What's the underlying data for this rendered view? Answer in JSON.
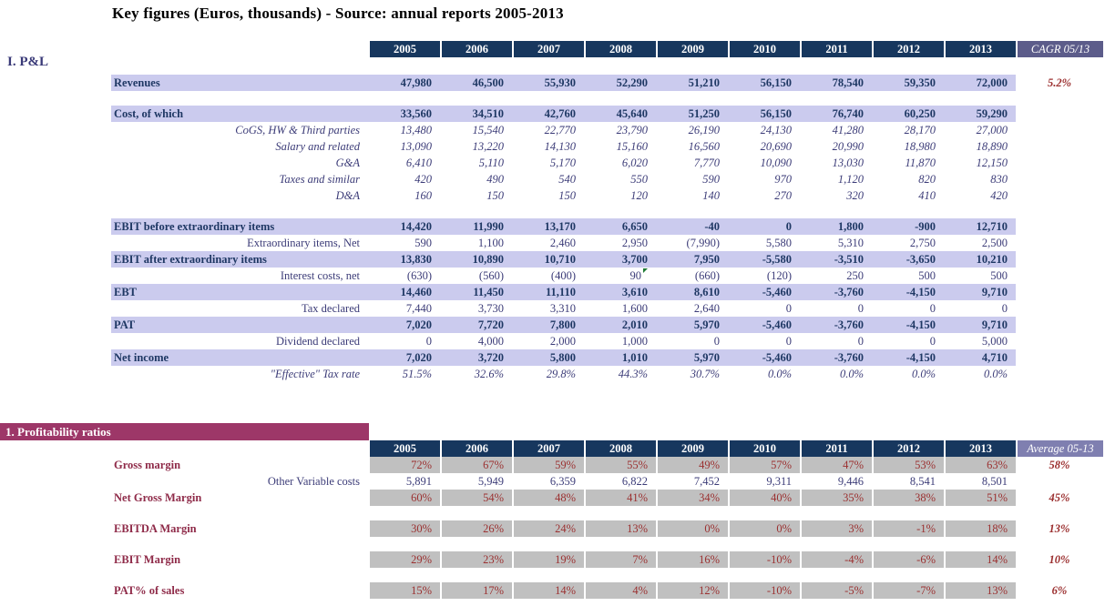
{
  "title": "Key figures (Euros, thousands) - Source: annual reports 2005-2013",
  "years": [
    "2005",
    "2006",
    "2007",
    "2008",
    "2009",
    "2010",
    "2011",
    "2012",
    "2013"
  ],
  "colors": {
    "header_navy": "#17375E",
    "lavender_band": "#CBCBEE",
    "gray_cell": "#C0C0C0",
    "banner_magenta": "#9D3768",
    "cagr_header_bg": "#5C5C8A",
    "average_header_bg": "#7F7FB0",
    "value_dark_red": "#9B3131",
    "ratio_label_red": "#8F2B49",
    "text_navy": "#1F3864",
    "comment_flag_green": "#1E7B34"
  },
  "pnl": {
    "section_label": "I. P&L",
    "extra_header": "CAGR 05/13",
    "rows": [
      {
        "id": "revenues",
        "label": "Revenues",
        "style": "total",
        "values": [
          "47,980",
          "46,500",
          "55,930",
          "52,290",
          "51,210",
          "56,150",
          "78,540",
          "59,350",
          "72,000"
        ],
        "extra": "5.2%"
      },
      {
        "style": "spacer",
        "h": 16
      },
      {
        "id": "cost-of-which",
        "label": "Cost, of which",
        "style": "total",
        "values": [
          "33,560",
          "34,510",
          "42,760",
          "45,640",
          "51,250",
          "56,150",
          "76,740",
          "60,250",
          "59,290"
        ]
      },
      {
        "id": "cogs-hw-third-parties",
        "label": "CoGS, HW & Third parties",
        "style": "italic",
        "values": [
          "13,480",
          "15,540",
          "22,770",
          "23,790",
          "26,190",
          "24,130",
          "41,280",
          "28,170",
          "27,000"
        ]
      },
      {
        "id": "salary-and-related",
        "label": "Salary and related",
        "style": "italic",
        "values": [
          "13,090",
          "13,220",
          "14,130",
          "15,160",
          "16,560",
          "20,690",
          "20,990",
          "18,980",
          "18,890"
        ]
      },
      {
        "id": "g-and-a",
        "label": "G&A",
        "style": "italic",
        "values": [
          "6,410",
          "5,110",
          "5,170",
          "6,020",
          "7,770",
          "10,090",
          "13,030",
          "11,870",
          "12,150"
        ]
      },
      {
        "id": "taxes-and-similar",
        "label": "Taxes and similar",
        "style": "italic",
        "values": [
          "420",
          "490",
          "540",
          "550",
          "590",
          "970",
          "1,120",
          "820",
          "830"
        ]
      },
      {
        "id": "d-and-a",
        "label": "D&A",
        "style": "italic",
        "values": [
          "160",
          "150",
          "150",
          "120",
          "140",
          "270",
          "320",
          "410",
          "420"
        ]
      },
      {
        "style": "spacer",
        "h": 16
      },
      {
        "id": "ebit-before-extraordinary",
        "label": "EBIT before extraordinary items",
        "style": "total",
        "values": [
          "14,420",
          "11,990",
          "13,170",
          "6,650",
          "-40",
          "0",
          "1,800",
          "-900",
          "12,710"
        ]
      },
      {
        "id": "extraordinary-items-net",
        "label": "Extraordinary items, Net",
        "style": "roman",
        "values": [
          "590",
          "1,100",
          "2,460",
          "2,950",
          "(7,990)",
          "5,580",
          "5,310",
          "2,750",
          "2,500"
        ]
      },
      {
        "id": "ebit-after-extraordinary",
        "label": "EBIT after extraordinary items",
        "style": "total",
        "values": [
          "13,830",
          "10,890",
          "10,710",
          "3,700",
          "7,950",
          "-5,580",
          "-3,510",
          "-3,650",
          "10,210"
        ]
      },
      {
        "id": "interest-costs-net",
        "label": "Interest costs, net",
        "style": "roman",
        "values": [
          "(630)",
          "(560)",
          "(400)",
          "90",
          "(660)",
          "(120)",
          "250",
          "500",
          "500"
        ],
        "flag_col": 3
      },
      {
        "id": "ebt",
        "label": "EBT",
        "style": "total",
        "values": [
          "14,460",
          "11,450",
          "11,110",
          "3,610",
          "8,610",
          "-5,460",
          "-3,760",
          "-4,150",
          "9,710"
        ]
      },
      {
        "id": "tax-declared",
        "label": "Tax declared",
        "style": "roman",
        "values": [
          "7,440",
          "3,730",
          "3,310",
          "1,600",
          "2,640",
          "0",
          "0",
          "0",
          "0"
        ]
      },
      {
        "id": "pat",
        "label": "PAT",
        "style": "total",
        "values": [
          "7,020",
          "7,720",
          "7,800",
          "2,010",
          "5,970",
          "-5,460",
          "-3,760",
          "-4,150",
          "9,710"
        ]
      },
      {
        "id": "dividend-declared",
        "label": "Dividend declared",
        "style": "roman",
        "values": [
          "0",
          "4,000",
          "2,000",
          "1,000",
          "0",
          "0",
          "0",
          "0",
          "5,000"
        ]
      },
      {
        "id": "net-income",
        "label": "Net income",
        "style": "total",
        "values": [
          "7,020",
          "3,720",
          "5,800",
          "1,010",
          "5,970",
          "-5,460",
          "-3,760",
          "-4,150",
          "4,710"
        ]
      },
      {
        "id": "effective-tax-rate",
        "label": "\"Effective\" Tax rate",
        "style": "italic",
        "values": [
          "51.5%",
          "32.6%",
          "29.8%",
          "44.3%",
          "30.7%",
          "0.0%",
          "0.0%",
          "0.0%",
          "0.0%"
        ]
      }
    ]
  },
  "ratios": {
    "banner": "1. Profitability ratios",
    "extra_header": "Average 05-13",
    "rows": [
      {
        "id": "gross-margin",
        "label": "Gross margin",
        "style": "ratio",
        "values": [
          "72%",
          "67%",
          "59%",
          "55%",
          "49%",
          "57%",
          "47%",
          "53%",
          "63%"
        ],
        "extra": "58%"
      },
      {
        "id": "other-variable-costs",
        "label": "Other Variable costs",
        "style": "plain",
        "values": [
          "5,891",
          "5,949",
          "6,359",
          "6,822",
          "7,452",
          "9,311",
          "9,446",
          "8,541",
          "8,501"
        ]
      },
      {
        "id": "net-gross-margin",
        "label": "Net Gross Margin",
        "style": "ratio",
        "values": [
          "60%",
          "54%",
          "48%",
          "41%",
          "34%",
          "40%",
          "35%",
          "38%",
          "51%"
        ],
        "extra": "45%"
      },
      {
        "style": "spacer",
        "h": 16
      },
      {
        "id": "ebitda-margin",
        "label": "EBITDA Margin",
        "style": "ratio",
        "values": [
          "30%",
          "26%",
          "24%",
          "13%",
          "0%",
          "0%",
          "3%",
          "-1%",
          "18%"
        ],
        "extra": "13%"
      },
      {
        "style": "spacer",
        "h": 16
      },
      {
        "id": "ebit-margin",
        "label": "EBIT Margin",
        "style": "ratio",
        "values": [
          "29%",
          "23%",
          "19%",
          "7%",
          "16%",
          "-10%",
          "-4%",
          "-6%",
          "14%"
        ],
        "extra": "10%"
      },
      {
        "style": "spacer",
        "h": 16
      },
      {
        "id": "pat-pct-of-sales",
        "label": "PAT% of sales",
        "style": "ratio",
        "values": [
          "15%",
          "17%",
          "14%",
          "4%",
          "12%",
          "-10%",
          "-5%",
          "-7%",
          "13%"
        ],
        "extra": "6%"
      }
    ]
  }
}
